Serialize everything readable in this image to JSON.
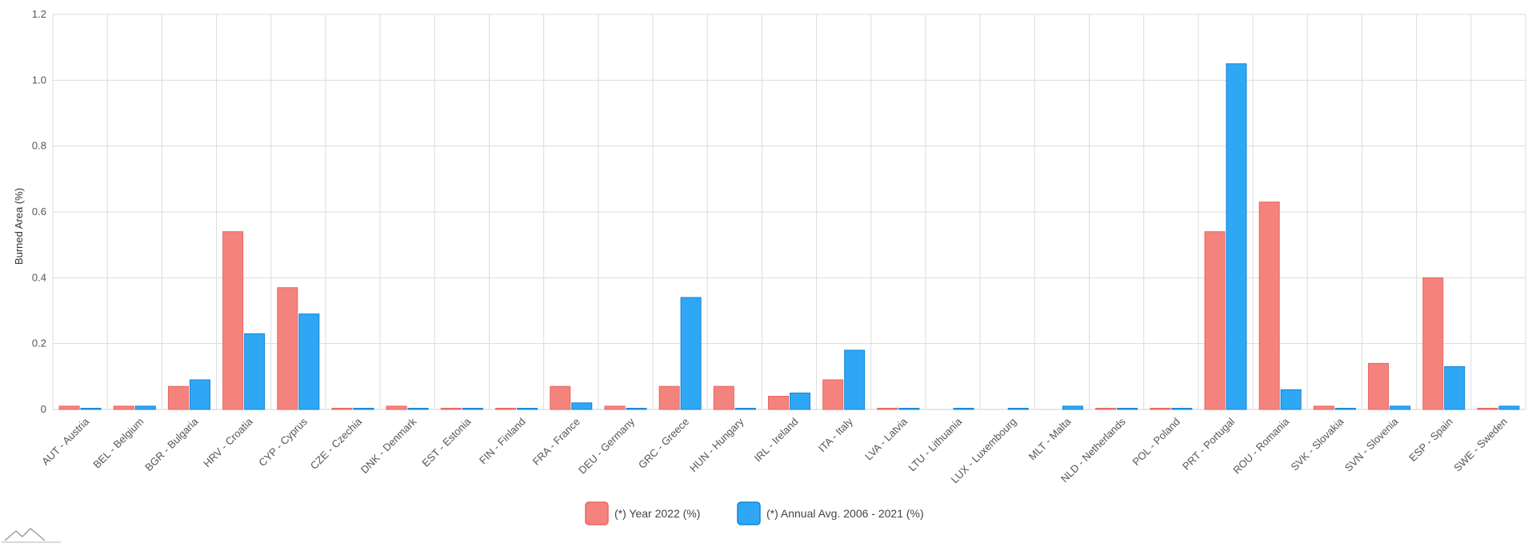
{
  "chart_data": {
    "type": "bar",
    "title": "",
    "xlabel": "",
    "ylabel": "Burned Area (%)",
    "ylim": [
      0,
      1.2
    ],
    "yticks": [
      0,
      0.2,
      0.4,
      0.6,
      0.8,
      1.0,
      1.2
    ],
    "ytick_labels": [
      "0",
      "0.2",
      "0.4",
      "0.6",
      "0.8",
      "1.0",
      "1.2"
    ],
    "grid": true,
    "legend_position": "bottom-center",
    "categories": [
      "AUT - Austria",
      "BEL - Belgium",
      "BGR - Bulgaria",
      "HRV - Croatia",
      "CYP - Cyprus",
      "CZE - Czechia",
      "DNK - Denmark",
      "EST - Estonia",
      "FIN - Finland",
      "FRA - France",
      "DEU - Germany",
      "GRC - Greece",
      "HUN - Hungary",
      "IRL - Ireland",
      "ITA - Italy",
      "LVA - Latvia",
      "LTU - Lithuania",
      "LUX - Luxembourg",
      "MLT - Malta",
      "NLD - Netherlands",
      "POL - Poland",
      "PRT - Portugal",
      "ROU - Romania",
      "SVK - Slovakia",
      "SVN - Slovenia",
      "ESP - Spain",
      "SWE - Sweden"
    ],
    "series": [
      {
        "name": "(*) Year 2022 (%)",
        "color": "#f4837d",
        "stroke": "#e8665f",
        "values": [
          0.01,
          0.01,
          0.07,
          0.54,
          0.37,
          0.0,
          0.01,
          0.0,
          0.0,
          0.07,
          0.01,
          0.07,
          0.07,
          0.04,
          0.09,
          0.0,
          null,
          null,
          null,
          0.0,
          0.0,
          0.54,
          0.63,
          0.01,
          0.14,
          0.4,
          0.0
        ]
      },
      {
        "name": "(*) Annual Avg. 2006 - 2021 (%)",
        "color": "#2ea8f5",
        "stroke": "#1683d4",
        "values": [
          0.0,
          0.01,
          0.09,
          0.23,
          0.29,
          0.0,
          0.0,
          0.0,
          0.0,
          0.02,
          0.0,
          0.34,
          0.0,
          0.05,
          0.18,
          0.0,
          0.0,
          0.0,
          0.01,
          0.0,
          0.0,
          1.05,
          0.06,
          0.0,
          0.01,
          0.13,
          0.01
        ]
      }
    ]
  },
  "logo": {
    "icon": "mountain-logo-icon"
  }
}
